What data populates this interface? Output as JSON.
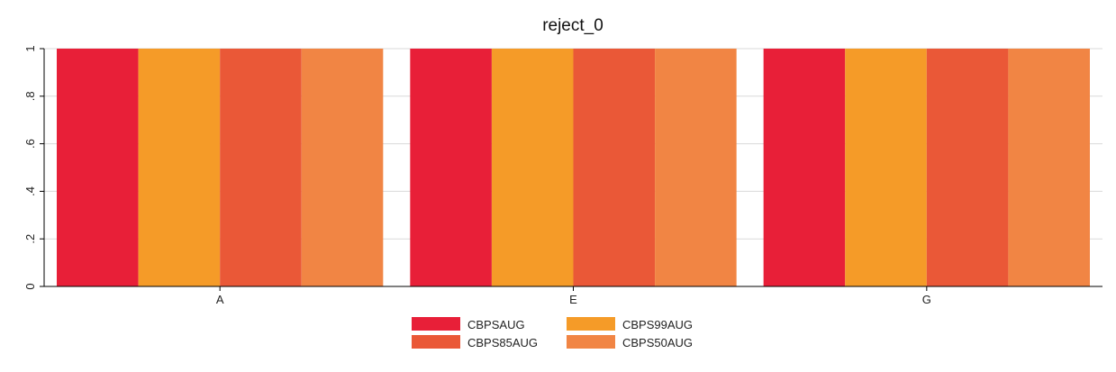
{
  "chart_data": {
    "type": "bar",
    "title": "reject_0",
    "xlabel": "",
    "ylabel": "",
    "categories": [
      "A",
      "E",
      "G"
    ],
    "series": [
      {
        "name": "CBPSAUG",
        "values": [
          1,
          1,
          1
        ],
        "color": "#e81f38"
      },
      {
        "name": "CBPS99AUG",
        "values": [
          1,
          1,
          1
        ],
        "color": "#f59b28"
      },
      {
        "name": "CBPS85AUG",
        "values": [
          1,
          1,
          1
        ],
        "color": "#ea5837"
      },
      {
        "name": "CBPS50AUG",
        "values": [
          1,
          1,
          1
        ],
        "color": "#f18544"
      }
    ],
    "ylim": [
      0,
      1
    ],
    "yticks": [
      {
        "value": 0,
        "label": "0"
      },
      {
        "value": 0.2,
        "label": ".2"
      },
      {
        "value": 0.4,
        "label": ".4"
      },
      {
        "value": 0.6,
        "label": ".6"
      },
      {
        "value": 0.8,
        "label": ".8"
      },
      {
        "value": 1,
        "label": "1"
      }
    ],
    "grid": true,
    "legend_position": "bottom",
    "legend_columns": 2
  },
  "colors": {
    "grid": "#d9d9d9",
    "axis": "#000000",
    "background": "#ffffff"
  }
}
